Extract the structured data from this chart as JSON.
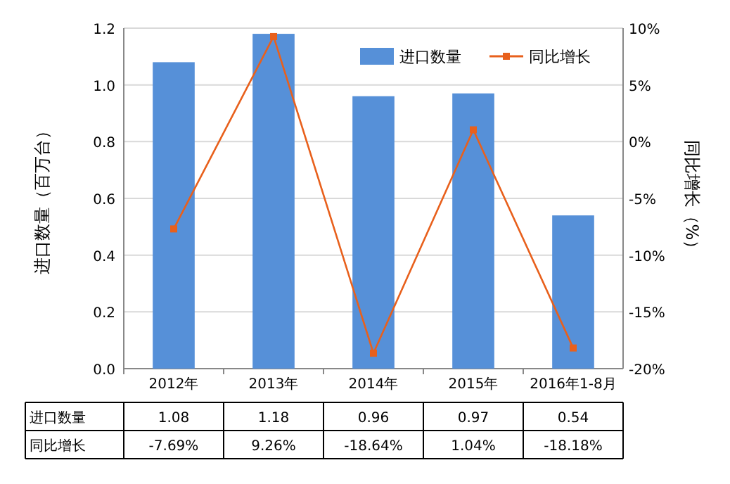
{
  "chart_data": {
    "type": "bar",
    "ylabel": "进口数量（百万台）",
    "y2label": "同比增长（%）",
    "categories": [
      "2012年",
      "2013年",
      "2014年",
      "2015年",
      "2016年1-8月"
    ],
    "series": [
      {
        "name": "进口数量",
        "color": "#5690d8",
        "values": [
          1.08,
          1.18,
          0.96,
          0.97,
          0.54
        ]
      },
      {
        "name": "同比增长",
        "type": "line",
        "axis": "y2",
        "color": "#e8601c",
        "marker": "square",
        "values": [
          -7.69,
          9.26,
          -18.64,
          1.04,
          -18.18
        ],
        "value_labels": [
          "-7.69%",
          "9.26%",
          "-18.64%",
          "1.04%",
          "-18.18%"
        ]
      }
    ],
    "ylim": [
      0,
      1.2
    ],
    "yticks": [
      {
        "value": 0,
        "label": "0.0"
      },
      {
        "value": 0.2,
        "label": "0.2"
      },
      {
        "value": 0.4,
        "label": "0.4"
      },
      {
        "value": 0.6,
        "label": "0.6"
      },
      {
        "value": 0.8,
        "label": "0.8"
      },
      {
        "value": 1.0,
        "label": "1.0"
      },
      {
        "value": 1.2,
        "label": "1.2"
      }
    ],
    "y2lim": [
      -20,
      10
    ],
    "y2ticks": [
      {
        "value": -20,
        "label": "-20%"
      },
      {
        "value": -15,
        "label": "-15%"
      },
      {
        "value": -10,
        "label": "-10%"
      },
      {
        "value": -5,
        "label": "-5%"
      },
      {
        "value": 0,
        "label": "0%"
      },
      {
        "value": 5,
        "label": "5%"
      },
      {
        "value": 10,
        "label": "10%"
      }
    ],
    "grid": "y",
    "legend": "top right",
    "data_labels": true
  }
}
